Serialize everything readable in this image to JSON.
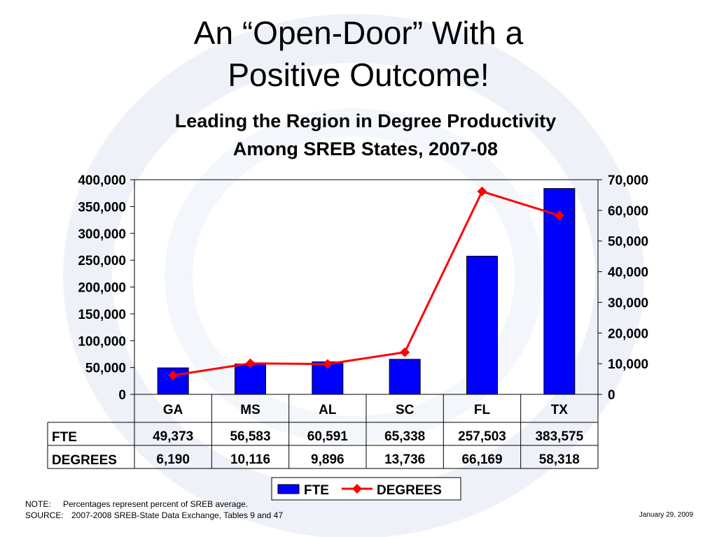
{
  "slide": {
    "title_line1": "An “Open-Door” With a",
    "title_line2": "Positive Outcome!",
    "note_label": "NOTE:",
    "note_text": "Percentages represent percent of SREB average.",
    "source_label": "SOURCE:",
    "source_text": "2007-2008 SREB-State Data Exchange, Tables 9 and 47",
    "date": "January 29, 2009"
  },
  "chart_data": {
    "type": "bar",
    "title_line1": "Leading the Region in Degree Productivity",
    "title_line2": "Among SREB States, 2007-08",
    "categories": [
      "GA",
      "MS",
      "AL",
      "SC",
      "FL",
      "TX"
    ],
    "series": [
      {
        "name": "FTE",
        "type": "bar",
        "axis": "left",
        "color": "#0000ff",
        "values": [
          49373,
          56583,
          60591,
          65338,
          257503,
          383575
        ],
        "labels": [
          "49,373",
          "56,583",
          "60,591",
          "65,338",
          "257,503",
          "383,575"
        ]
      },
      {
        "name": "DEGREES",
        "type": "line",
        "axis": "right",
        "color": "#ff0000",
        "values": [
          6190,
          10116,
          9896,
          13736,
          66169,
          58318
        ],
        "labels": [
          "6,190",
          "10,116",
          "9,896",
          "13,736",
          "66,169",
          "58,318"
        ]
      }
    ],
    "y_left": {
      "min": 0,
      "max": 400000,
      "ticks": [
        "0",
        "50,000",
        "100,000",
        "150,000",
        "200,000",
        "250,000",
        "300,000",
        "350,000",
        "400,000"
      ]
    },
    "y_right": {
      "min": 0,
      "max": 70000,
      "ticks": [
        "0",
        "10,000",
        "20,000",
        "30,000",
        "40,000",
        "50,000",
        "60,000",
        "70,000"
      ]
    },
    "data_table": true,
    "legend_position": "bottom-center",
    "grid": false
  }
}
